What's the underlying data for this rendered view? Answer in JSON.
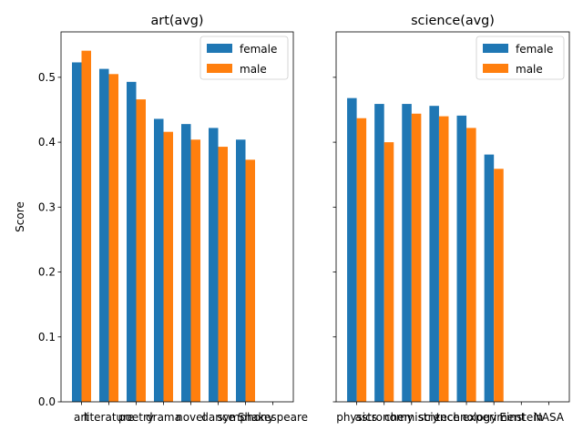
{
  "chart_data": [
    {
      "type": "bar",
      "title": "art(avg)",
      "xlabel": "",
      "ylabel": "Score",
      "ylim": [
        0,
        0.57
      ],
      "yticks": [
        0.0,
        0.1,
        0.2,
        0.3,
        0.4,
        0.5
      ],
      "ytick_labels": [
        "0.0",
        "0.1",
        "0.2",
        "0.3",
        "0.4",
        "0.5"
      ],
      "categories": [
        "art",
        "literature",
        "poetry",
        "drama",
        "novel",
        "dance",
        "symphony",
        "Shakespeare"
      ],
      "legend": "top-right",
      "grid": false,
      "series": [
        {
          "name": "female",
          "color": "#1f77b4",
          "values": [
            0.523,
            0.513,
            0.493,
            0.436,
            0.428,
            0.422,
            0.404,
            null
          ]
        },
        {
          "name": "male",
          "color": "#ff7f0e",
          "values": [
            0.541,
            0.505,
            0.466,
            0.416,
            0.404,
            0.393,
            0.373,
            null
          ]
        }
      ]
    },
    {
      "type": "bar",
      "title": "science(avg)",
      "xlabel": "",
      "ylabel": "",
      "ylim": [
        0,
        0.57
      ],
      "yticks": [
        0.0,
        0.1,
        0.2,
        0.3,
        0.4,
        0.5
      ],
      "categories": [
        "physics",
        "astronomy",
        "chemistry",
        "science",
        "technology",
        "experiment",
        "Einstein",
        "NASA"
      ],
      "legend": "top-right",
      "grid": false,
      "series": [
        {
          "name": "female",
          "color": "#1f77b4",
          "values": [
            0.468,
            0.459,
            0.459,
            0.456,
            0.441,
            0.381,
            null,
            null
          ]
        },
        {
          "name": "male",
          "color": "#ff7f0e",
          "values": [
            0.437,
            0.4,
            0.444,
            0.44,
            0.422,
            0.359,
            null,
            null
          ]
        }
      ]
    }
  ]
}
